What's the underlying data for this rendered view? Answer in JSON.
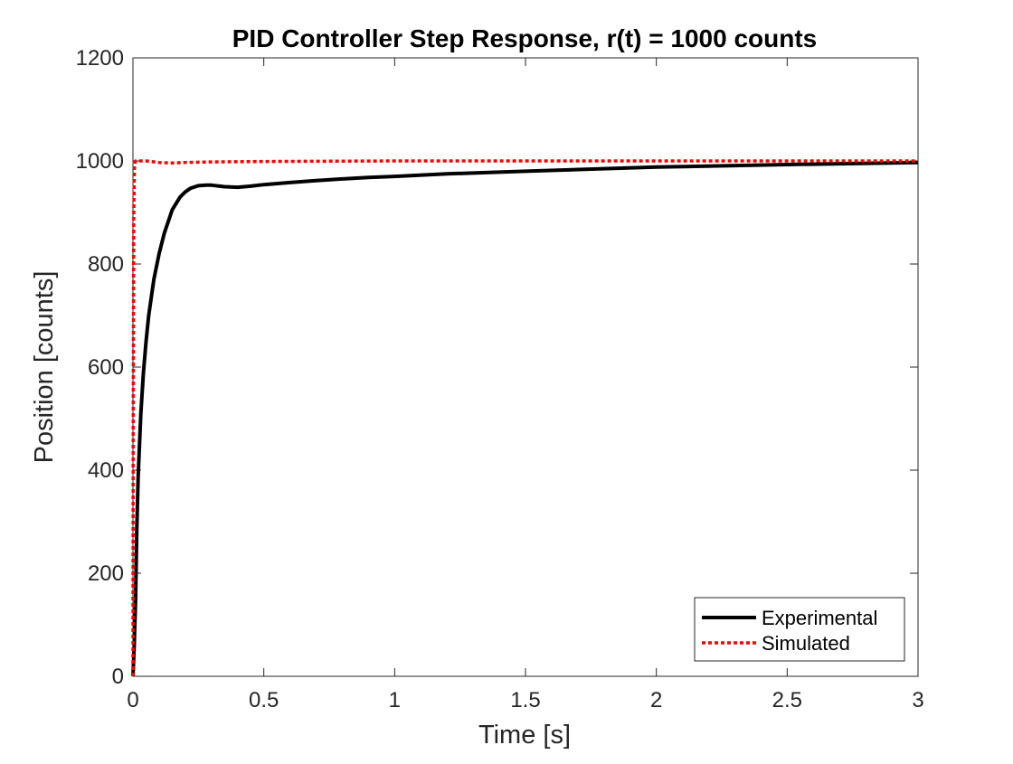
{
  "chart_data": {
    "type": "line",
    "title": "PID Controller Step Response, r(t) = 1000 counts",
    "xlabel": "Time [s]",
    "ylabel": "Position [counts]",
    "xlim": [
      0,
      3
    ],
    "ylim": [
      0,
      1200
    ],
    "xticks": [
      0,
      0.5,
      1,
      1.5,
      2,
      2.5,
      3
    ],
    "xtick_labels": [
      "0",
      "0.5",
      "1",
      "1.5",
      "2",
      "2.5",
      "3"
    ],
    "yticks": [
      0,
      200,
      400,
      600,
      800,
      1000,
      1200
    ],
    "ytick_labels": [
      "0",
      "200",
      "400",
      "600",
      "800",
      "1000",
      "1200"
    ],
    "grid": false,
    "legend_position": "bottom-right",
    "series": [
      {
        "name": "Experimental",
        "color": "#000000",
        "style": "solid",
        "x": [
          0,
          0.005,
          0.01,
          0.015,
          0.02,
          0.03,
          0.04,
          0.05,
          0.06,
          0.08,
          0.1,
          0.12,
          0.15,
          0.18,
          0.2,
          0.22,
          0.25,
          0.28,
          0.3,
          0.35,
          0.4,
          0.45,
          0.5,
          0.6,
          0.7,
          0.8,
          0.9,
          1.0,
          1.2,
          1.5,
          2.0,
          2.5,
          3.0
        ],
        "y": [
          0,
          60,
          150,
          290,
          390,
          510,
          590,
          650,
          700,
          770,
          820,
          860,
          905,
          930,
          940,
          947,
          952,
          953,
          953,
          950,
          949,
          951,
          954,
          958,
          962,
          965,
          968,
          970,
          975,
          980,
          988,
          993,
          997
        ]
      },
      {
        "name": "Simulated",
        "color": "#ff0000",
        "style": "dotted",
        "x": [
          0,
          0.001,
          0.003,
          0.006,
          0.01,
          0.05,
          0.1,
          0.15,
          0.2,
          0.3,
          0.5,
          1.0,
          1.5,
          2.0,
          2.5,
          3.0
        ],
        "y": [
          0,
          500,
          900,
          990,
          1000,
          1000,
          997,
          996,
          997,
          998,
          999,
          1000,
          1000,
          1000,
          1000,
          1000
        ]
      }
    ]
  }
}
